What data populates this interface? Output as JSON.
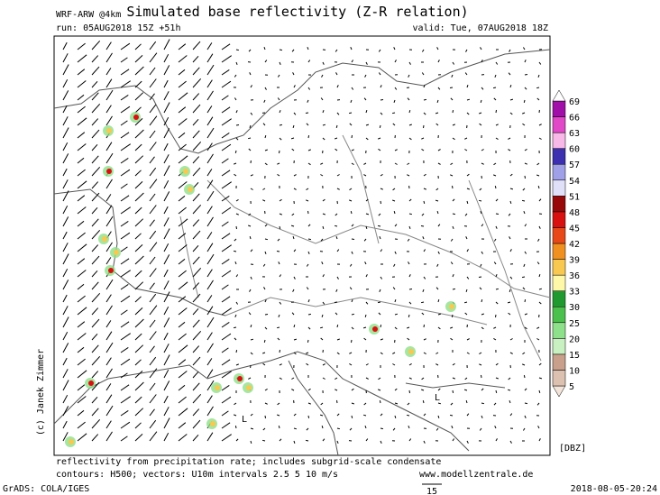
{
  "header": {
    "model": "WRF-ARW @4km",
    "title": "Simulated base reflectivity (Z-R relation)",
    "run": "run: 05AUG2018 15Z +51h",
    "valid": "valid: Tue, 07AUG2018 18Z"
  },
  "colorbar": {
    "unit": "[DBZ]",
    "levels": [
      5,
      10,
      15,
      20,
      25,
      30,
      33,
      36,
      39,
      42,
      45,
      48,
      51,
      54,
      57,
      60,
      63,
      66,
      69
    ],
    "colors": [
      "#f3e4da",
      "#dcc0b0",
      "#c8a08c",
      "#c8f0c0",
      "#8ee08a",
      "#4cc04c",
      "#209a30",
      "#fff8a8",
      "#f8c850",
      "#f09020",
      "#e84818",
      "#d81010",
      "#980808",
      "#e0e0f8",
      "#a0a0e8",
      "#3c30b0",
      "#f8b8e8",
      "#e048c8",
      "#a010a8",
      "#ffffff"
    ]
  },
  "map": {
    "lows": [
      "L",
      "L"
    ]
  },
  "footer": {
    "note": "reflectivity from precipitation rate; includes subgrid-scale condensate",
    "contours": "contours: H500; vectors: U10m intervals 2.5 5 10 m/s",
    "site": "www.modellzentrale.de",
    "copyright": "(c) Janek Zimmer",
    "grads": "GrADS: COLA/IGES",
    "timestamp": "2018-08-05-20:24",
    "ref_vector": "15"
  }
}
